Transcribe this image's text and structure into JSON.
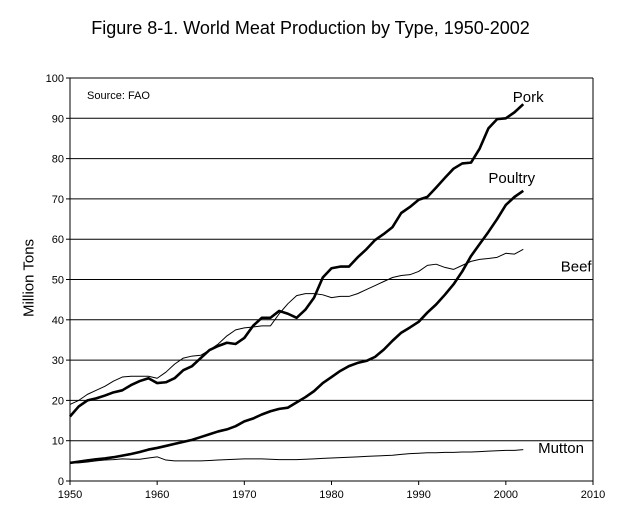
{
  "chart_data": {
    "type": "line",
    "title": "Figure 8-1. World Meat Production by Type, 1950-2002",
    "xlabel": "",
    "ylabel": "Million Tons",
    "xlim": [
      1950,
      2010
    ],
    "ylim": [
      0,
      100
    ],
    "xticks": [
      1950,
      1960,
      1970,
      1980,
      1990,
      2000,
      2010
    ],
    "yticks": [
      0,
      10,
      20,
      30,
      40,
      50,
      60,
      70,
      80,
      90,
      100
    ],
    "grid": "horizontal",
    "annotation": "Source: FAO",
    "x": [
      1950,
      1951,
      1952,
      1953,
      1954,
      1955,
      1956,
      1957,
      1958,
      1959,
      1960,
      1961,
      1962,
      1963,
      1964,
      1965,
      1966,
      1967,
      1968,
      1969,
      1970,
      1971,
      1972,
      1973,
      1974,
      1975,
      1976,
      1977,
      1978,
      1979,
      1980,
      1981,
      1982,
      1983,
      1984,
      1985,
      1986,
      1987,
      1988,
      1989,
      1990,
      1991,
      1992,
      1993,
      1994,
      1995,
      1996,
      1997,
      1998,
      1999,
      2000,
      2001,
      2002
    ],
    "series": [
      {
        "name": "Pork",
        "thick": true,
        "values": [
          16,
          18.5,
          20,
          20.5,
          21.2,
          22,
          22.5,
          23.8,
          24.8,
          25.5,
          24.3,
          24.5,
          25.5,
          27.5,
          28.5,
          30.5,
          32.5,
          33.5,
          34.3,
          34,
          35.5,
          38.5,
          40.5,
          40.5,
          42.2,
          41.5,
          40.5,
          42.5,
          45.5,
          50.5,
          52.8,
          53.2,
          53.2,
          55.5,
          57.5,
          59.8,
          61.3,
          63,
          66.5,
          68,
          69.8,
          70.5,
          72.8,
          75.2,
          77.5,
          78.8,
          79,
          82.5,
          87.5,
          89.8,
          90,
          91.5,
          93.5
        ]
      },
      {
        "name": "Poultry",
        "thick": true,
        "values": [
          4.5,
          4.8,
          5.1,
          5.4,
          5.6,
          5.9,
          6.3,
          6.7,
          7.2,
          7.8,
          8.2,
          8.7,
          9.2,
          9.7,
          10.2,
          10.9,
          11.6,
          12.3,
          12.8,
          13.6,
          14.8,
          15.5,
          16.5,
          17.3,
          17.9,
          18.2,
          19.5,
          20.8,
          22.3,
          24.3,
          25.8,
          27.3,
          28.5,
          29.3,
          29.8,
          30.8,
          32.6,
          34.8,
          36.8,
          38.1,
          39.5,
          41.8,
          43.8,
          46.2,
          48.8,
          52,
          55.8,
          58.8,
          61.8,
          65,
          68.5,
          70.5,
          72
        ]
      },
      {
        "name": "Beef",
        "thick": false,
        "values": [
          19,
          20,
          21.5,
          22.5,
          23.5,
          24.8,
          25.8,
          26,
          26,
          26,
          25.5,
          27,
          29,
          30.5,
          31,
          31.2,
          32.5,
          34,
          36,
          37.5,
          38,
          38.2,
          38.5,
          38.5,
          41.5,
          44,
          46,
          46.5,
          46.5,
          46.2,
          45.5,
          45.8,
          45.8,
          46.5,
          47.5,
          48.5,
          49.5,
          50.5,
          51,
          51.2,
          52,
          53.5,
          53.8,
          53,
          52.5,
          53.5,
          54.5,
          55,
          55.2,
          55.5,
          56.5,
          56.3,
          57.5
        ]
      },
      {
        "name": "Mutton",
        "thick": false,
        "values": [
          4.5,
          4.5,
          4.7,
          5,
          5.2,
          5.3,
          5.5,
          5.4,
          5.4,
          5.7,
          6,
          5.2,
          5,
          5,
          5,
          5,
          5.1,
          5.2,
          5.3,
          5.4,
          5.5,
          5.5,
          5.5,
          5.4,
          5.3,
          5.3,
          5.3,
          5.4,
          5.5,
          5.6,
          5.7,
          5.8,
          5.9,
          6,
          6.1,
          6.2,
          6.3,
          6.4,
          6.6,
          6.8,
          6.9,
          7,
          7,
          7.1,
          7.1,
          7.2,
          7.2,
          7.3,
          7.4,
          7.5,
          7.6,
          7.6,
          7.8
        ]
      }
    ]
  }
}
